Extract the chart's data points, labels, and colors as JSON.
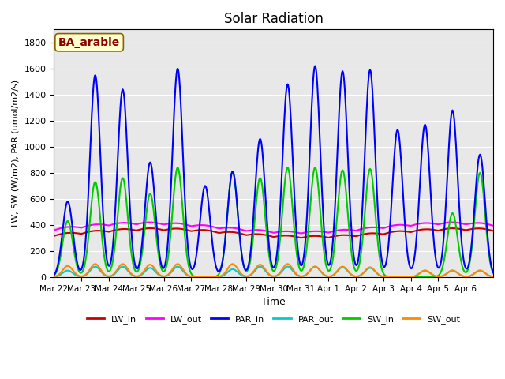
{
  "title": "Solar Radiation",
  "xlabel": "Time",
  "ylabel": "LW, SW (W/m2), PAR (umol/m2/s)",
  "annotation": "BA_arable",
  "ylim": [
    0,
    1900
  ],
  "yticks": [
    0,
    200,
    400,
    600,
    800,
    1000,
    1200,
    1400,
    1600,
    1800
  ],
  "xtick_labels": [
    "Mar 22",
    "Mar 23",
    "Mar 24",
    "Mar 25",
    "Mar 26",
    "Mar 27",
    "Mar 28",
    "Mar 29",
    "Mar 30",
    "Mar 31",
    "Apr 1",
    "Apr 2",
    "Apr 3",
    "Apr 4",
    "Apr 5",
    "Apr 6"
  ],
  "n_days": 16,
  "background_color": "#e8e8e8",
  "series": {
    "LW_in": {
      "color": "#cc0000",
      "lw": 1.5
    },
    "LW_out": {
      "color": "#ff00ff",
      "lw": 1.5
    },
    "PAR_in": {
      "color": "#0000ff",
      "lw": 1.5
    },
    "PAR_out": {
      "color": "#00cccc",
      "lw": 1.5
    },
    "SW_in": {
      "color": "#00cc00",
      "lw": 1.5
    },
    "SW_out": {
      "color": "#ff8800",
      "lw": 1.5
    }
  },
  "PAR_in_peaks": [
    580,
    1550,
    1440,
    880,
    1600,
    700,
    810,
    1060,
    1480,
    1620,
    1580,
    1590,
    1130,
    1170,
    1280,
    940
  ],
  "SW_in_peaks": [
    430,
    730,
    760,
    640,
    840,
    0,
    810,
    760,
    840,
    840,
    820,
    830,
    0,
    0,
    490,
    800
  ],
  "SW_out_peaks": [
    85,
    100,
    100,
    95,
    100,
    0,
    100,
    95,
    100,
    80,
    80,
    75,
    0,
    50,
    50,
    50
  ],
  "PAR_out_peaks": [
    50,
    80,
    80,
    70,
    80,
    0,
    60,
    80,
    80,
    80,
    75,
    70,
    0,
    50,
    50,
    50
  ],
  "LW_in_base": 330,
  "LW_out_base": 370,
  "LW_in_amp": 30,
  "LW_out_amp": 35
}
